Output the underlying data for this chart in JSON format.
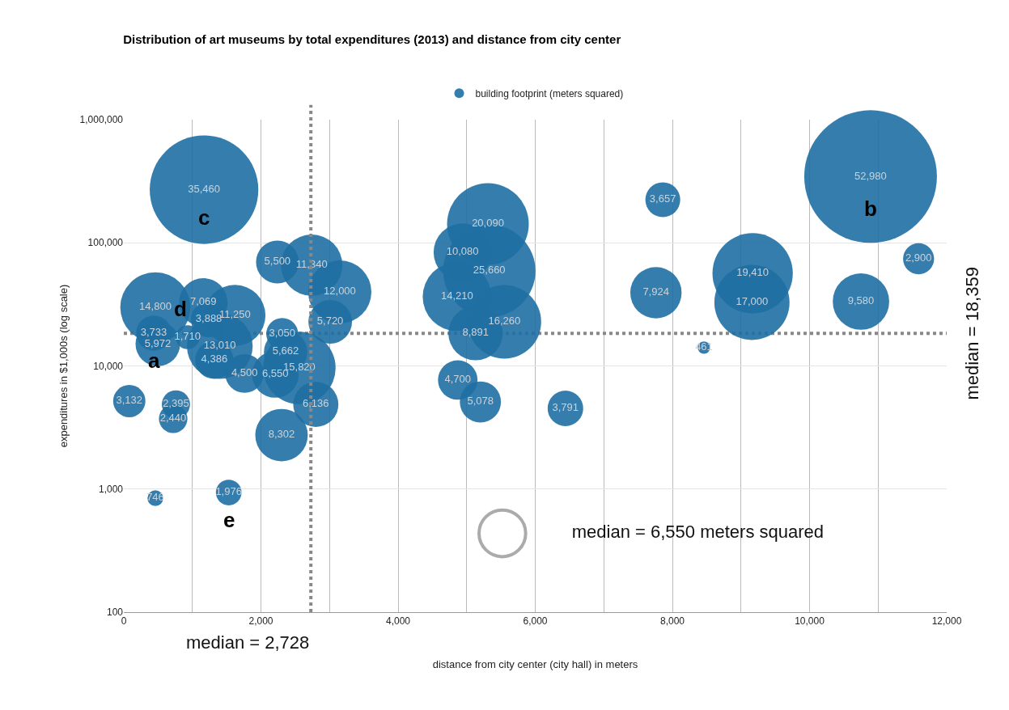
{
  "chart_data": {
    "type": "bubble",
    "title": "Distribution of art museums by total expenditures (2013) and distance from city center",
    "xlabel": "distance from city center (city hall) in meters",
    "ylabel": "expenditures in $1,000s (log scale)",
    "series": [
      {
        "name": "building footprint (meters squared)",
        "color": "#1f6fa3",
        "x": [
          1170,
          10890,
          5310,
          4940,
          5330,
          4860,
          5550,
          5130,
          4870,
          5200,
          6440,
          7860,
          7760,
          9170,
          9160,
          10750,
          11590,
          8460,
          460,
          1160,
          1620,
          1240,
          437,
          496,
          930,
          1400,
          1320,
          2310,
          2360,
          1760,
          2210,
          2560,
          2800,
          2300,
          2240,
          2740,
          3150,
          3010,
          80,
          760,
          720,
          460,
          1530
        ],
        "values": [
          270000,
          345000,
          142000,
          83700,
          59100,
          36500,
          22800,
          18450,
          7680,
          5100,
          4520,
          224000,
          39300,
          56500,
          32800,
          33300,
          74200,
          14100,
          29900,
          32800,
          25700,
          23900,
          18450,
          15100,
          17100,
          14500,
          11200,
          18200,
          13000,
          8670,
          8530,
          9630,
          4870,
          2740,
          69800,
          65800,
          39900,
          22800,
          5180,
          4870,
          3720,
          843,
          937
        ],
        "sizes": [
          35460,
          52980,
          20090,
          10080,
          25660,
          14210,
          16260,
          8891,
          4700,
          5078,
          3791,
          3657,
          7924,
          19410,
          17000,
          9580,
          2900,
          461,
          14800,
          7069,
          11250,
          3888,
          3733,
          5972,
          1710,
          13010,
          4386,
          3050,
          5662,
          4500,
          6550,
          15820,
          6136,
          8302,
          5500,
          11340,
          12000,
          5720,
          3132,
          2395,
          2440,
          746,
          1976
        ]
      }
    ],
    "size_legend": [
      {
        "value": 6550,
        "label": "median = 6,550 meters squared"
      }
    ],
    "value_labels": [
      "35,460",
      "52,980",
      "20,090",
      "10,080",
      "25,660",
      "14,210",
      "16,260",
      "8,891",
      "4,700",
      "5,078",
      "3,791",
      "3,657",
      "7,924",
      "19,410",
      "17,000",
      "9,580",
      "2,900",
      "461",
      "14,800",
      "7,069",
      "11,250",
      "3,888",
      "3,733",
      "5,972",
      "1,710",
      "13,010",
      "4,386",
      "3,050",
      "5,662",
      "4,500",
      "6,550",
      "15,820",
      "6,136",
      "8,302",
      "5,500",
      "11,340",
      "12,000",
      "5,720",
      "3,132",
      "2,395",
      "2,440",
      "746",
      "1,976"
    ],
    "log": "y",
    "xlim": [
      0,
      12000
    ],
    "xticks": [
      0,
      {
        "value": 1000,
        "label": null
      },
      {
        "value": 2000,
        "label": "2,000"
      },
      {
        "value": 3000,
        "label": null
      },
      {
        "value": 4000,
        "label": "4,000"
      },
      {
        "value": 5000,
        "label": null
      },
      {
        "value": 6000,
        "label": "6,000"
      },
      {
        "value": 7000,
        "label": null
      },
      {
        "value": 8000,
        "label": "8,000"
      },
      {
        "value": 9000,
        "label": null
      },
      {
        "value": 10000,
        "label": "10,000"
      },
      {
        "value": 11000,
        "label": null
      },
      {
        "value": 12000,
        "label": "12,000"
      }
    ],
    "ylim": [
      100,
      1000000
    ],
    "yticks": [
      100,
      {
        "value": 1000,
        "label": "1,000"
      },
      {
        "value": 10000,
        "label": "10,000"
      },
      {
        "value": 100000,
        "label": "100,000"
      },
      {
        "value": 1000000,
        "label": "1,000,000"
      }
    ],
    "grid": true,
    "legend": "top",
    "ref_lines": [
      {
        "axis": "x",
        "value": 2728,
        "label": "median = 2,728",
        "color": "#888888",
        "line_style": "dotted"
      },
      {
        "axis": "y",
        "value": 18359,
        "label": "median = 18,359",
        "color": "#888888",
        "line_style": "dotted"
      }
    ],
    "annotations": [
      {
        "text": "a",
        "x": 437,
        "y": 18450
      },
      {
        "text": "b",
        "x": 10890,
        "y": 345000
      },
      {
        "text": "c",
        "x": 1170,
        "y": 270000
      },
      {
        "text": "d",
        "x": 1160,
        "y": 32800
      },
      {
        "text": "e",
        "x": 1530,
        "y": 937
      }
    ]
  }
}
